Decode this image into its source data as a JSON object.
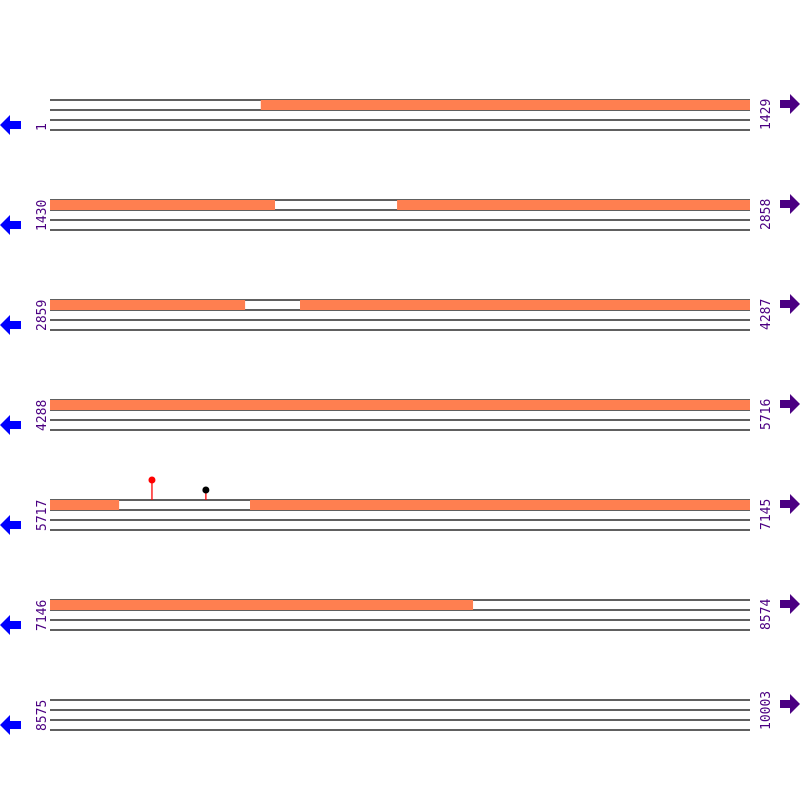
{
  "colors": {
    "feature": "#ff7f50",
    "line": "#000000",
    "left_arrow": "#0000ff",
    "right_arrow": "#4b0082",
    "label": "#4b0082",
    "marker_red": "#ff0000",
    "marker_black": "#000000"
  },
  "rows": [
    {
      "start": 1,
      "end": 1429,
      "features": [
        [
          431,
          1429
        ]
      ]
    },
    {
      "start": 1430,
      "end": 2858,
      "features": [
        [
          1430,
          1889
        ],
        [
          2138,
          2858
        ]
      ]
    },
    {
      "start": 2859,
      "end": 4287,
      "features": [
        [
          2859,
          3257
        ],
        [
          3369,
          4287
        ]
      ]
    },
    {
      "start": 4288,
      "end": 5716,
      "features": [
        [
          4288,
          5716
        ]
      ]
    },
    {
      "start": 5717,
      "end": 7145,
      "features": [
        [
          5717,
          5858
        ],
        [
          6125,
          7145
        ]
      ]
    },
    {
      "start": 7146,
      "end": 8574,
      "features": [
        [
          7146,
          8009
        ]
      ]
    },
    {
      "start": 8575,
      "end": 10003,
      "features": []
    }
  ],
  "markers": [
    {
      "position": 5925,
      "color": "#ff0000",
      "height": "tall"
    },
    {
      "position": 6035,
      "color": "#000000",
      "height": "short"
    }
  ],
  "icons": {
    "left": "arrow-left-icon",
    "right": "arrow-right-icon"
  }
}
